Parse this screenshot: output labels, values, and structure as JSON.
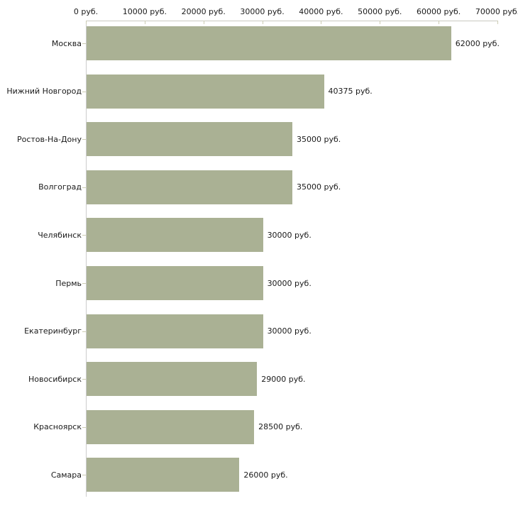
{
  "chart_data": {
    "type": "bar",
    "orientation": "horizontal",
    "title": "",
    "xlabel": "",
    "ylabel": "",
    "grid": false,
    "legend_position": "none",
    "xlim": [
      0,
      70000
    ],
    "x_ticks": [
      0,
      10000,
      20000,
      30000,
      40000,
      50000,
      60000,
      70000
    ],
    "x_tick_labels": [
      "0 руб.",
      "10000 руб.",
      "20000 руб.",
      "30000 руб.",
      "40000 руб.",
      "50000 руб.",
      "60000 руб.",
      "70000 руб."
    ],
    "categories": [
      "Москва",
      "Нижний Новгород",
      "Ростов-На-Дону",
      "Волгоград",
      "Челябинск",
      "Пермь",
      "Екатеринбург",
      "Новосибирск",
      "Красноярск",
      "Самара"
    ],
    "values": [
      62000,
      40375,
      35000,
      35000,
      30000,
      30000,
      30000,
      29000,
      28500,
      26000
    ],
    "value_labels": [
      "62000 руб.",
      "40375 руб.",
      "35000 руб.",
      "35000 руб.",
      "30000 руб.",
      "30000 руб.",
      "30000 руб.",
      "29000 руб.",
      "28500 руб.",
      "26000 руб."
    ],
    "bar_color": "#aab194",
    "axis_color": "#c9c9c0",
    "tick_color": "#ccccb3",
    "text_color": "#1a1a1a"
  }
}
